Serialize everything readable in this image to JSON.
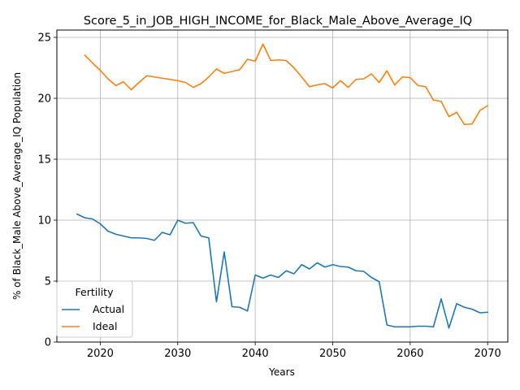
{
  "chart_data": {
    "type": "line",
    "title": "Score_5_in_JOB_HIGH_INCOME_for_Black_Male_Above_Average_IQ",
    "xlabel": "Years",
    "ylabel": "% of Black_Male Above_Average_IQ Population",
    "xlim": [
      2014.4,
      2072.6
    ],
    "ylim": [
      0,
      25.6
    ],
    "x_ticks": [
      2020,
      2030,
      2040,
      2050,
      2060,
      2070
    ],
    "y_ticks": [
      0,
      5,
      10,
      15,
      20,
      25
    ],
    "grid": true,
    "legend": {
      "title": "Fertility",
      "placement": "lower-left"
    },
    "series": [
      {
        "name": "Actual",
        "color": "#1f77b4",
        "x": [
          2017,
          2018,
          2019,
          2020,
          2021,
          2022,
          2023,
          2024,
          2025,
          2026,
          2027,
          2028,
          2029,
          2030,
          2031,
          2032,
          2033,
          2034,
          2035,
          2036,
          2037,
          2038,
          2039,
          2040,
          2041,
          2042,
          2043,
          2044,
          2045,
          2046,
          2047,
          2048,
          2049,
          2050,
          2051,
          2052,
          2053,
          2054,
          2055,
          2056,
          2057,
          2058,
          2059,
          2060,
          2061,
          2062,
          2063,
          2064,
          2065,
          2066,
          2067,
          2068,
          2069,
          2070
        ],
        "values": [
          10.5,
          10.2,
          10.1,
          9.7,
          9.1,
          8.85,
          8.7,
          8.55,
          8.55,
          8.5,
          8.35,
          9.0,
          8.8,
          10.0,
          9.75,
          9.8,
          8.7,
          8.55,
          3.3,
          7.4,
          2.9,
          2.85,
          2.55,
          5.5,
          5.25,
          5.5,
          5.3,
          5.85,
          5.6,
          6.35,
          6.0,
          6.5,
          6.15,
          6.35,
          6.2,
          6.15,
          5.85,
          5.8,
          5.3,
          4.95,
          1.4,
          1.25,
          1.25,
          1.25,
          1.3,
          1.3,
          1.25,
          3.55,
          1.15,
          3.15,
          2.85,
          2.7,
          2.4,
          2.45
        ]
      },
      {
        "name": "Ideal",
        "color": "#ff7f0e",
        "x": [
          2018,
          2019,
          2020,
          2021,
          2022,
          2023,
          2024,
          2025,
          2026,
          2027,
          2028,
          2029,
          2030,
          2031,
          2032,
          2033,
          2034,
          2035,
          2036,
          2037,
          2038,
          2039,
          2040,
          2041,
          2042,
          2043,
          2044,
          2045,
          2046,
          2047,
          2048,
          2049,
          2050,
          2051,
          2052,
          2053,
          2054,
          2055,
          2056,
          2057,
          2058,
          2059,
          2060,
          2061,
          2062,
          2063,
          2064,
          2065,
          2066,
          2067,
          2068,
          2069,
          2070
        ],
        "values": [
          23.55,
          22.9,
          22.3,
          21.6,
          21.05,
          21.35,
          20.7,
          21.3,
          21.85,
          21.75,
          21.65,
          21.55,
          21.45,
          21.3,
          20.9,
          21.2,
          21.75,
          22.4,
          22.05,
          22.2,
          22.35,
          23.2,
          23.05,
          24.45,
          23.1,
          23.15,
          23.1,
          22.5,
          21.75,
          20.95,
          21.1,
          21.2,
          20.85,
          21.45,
          20.9,
          21.55,
          21.6,
          22.0,
          21.3,
          22.25,
          21.1,
          21.75,
          21.7,
          21.05,
          20.95,
          19.85,
          19.75,
          18.5,
          18.85,
          17.85,
          17.9,
          19.0,
          19.4
        ]
      }
    ]
  }
}
